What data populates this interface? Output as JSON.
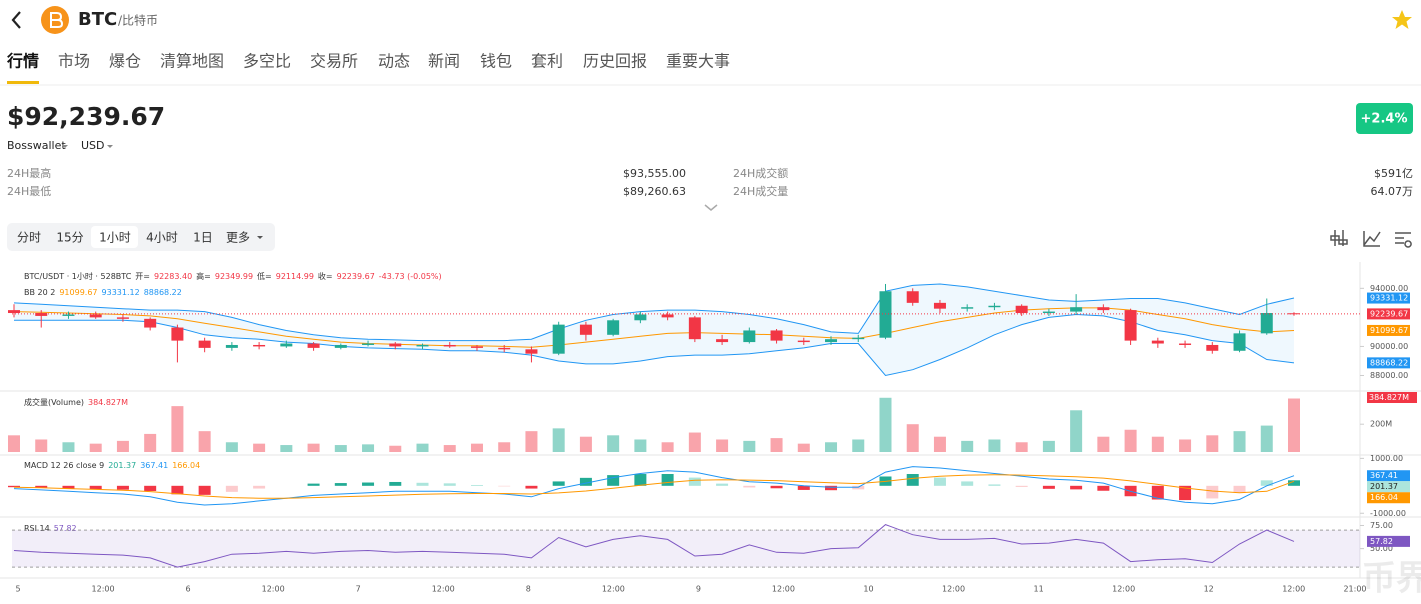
{
  "header": {
    "symbol": "BTC",
    "name": "/比特币"
  },
  "tabs": [
    "行情",
    "市场",
    "爆仓",
    "清算地图",
    "多空比",
    "交易所",
    "动态",
    "新闻",
    "钱包",
    "套利",
    "历史回报",
    "重要大事"
  ],
  "quote": {
    "price": "$92,239.67",
    "change": "+2.4%",
    "source": "Bosswallet",
    "currency": "USD"
  },
  "stats": [
    [
      "24H最高",
      "$93,555.00"
    ],
    [
      "24H最低",
      "$89,260.63"
    ],
    [
      "24H成交额",
      "$591亿"
    ],
    [
      "24H成交量",
      "64.07万"
    ]
  ],
  "timeframes": [
    "分时",
    "15分",
    "1小时",
    "4小时",
    "1日",
    "更多"
  ],
  "chart_data": {
    "type": "candlestick",
    "info": {
      "symbol": "BTC/USDT · 1小时 · 528BTC",
      "open_label": "开=",
      "open": "92283.40",
      "high_label": "高=",
      "high": "92349.99",
      "low_label": "低=",
      "low": "92114.99",
      "close_label": "收=",
      "close": "92239.67",
      "change": "-43.73 (-0.05%)"
    },
    "x_labels": [
      "5",
      "12:00",
      "6",
      "12:00",
      "7",
      "12:00",
      "8",
      "12:00",
      "9",
      "12:00",
      "10",
      "12:00",
      "11",
      "12:00",
      "12",
      "12:00",
      "21:00"
    ],
    "up_color": "#22ab94",
    "down_color": "#f23645",
    "ylim": [
      87000,
      95400
    ],
    "yticks": [
      {
        "value": 94000,
        "label": "94000.00"
      },
      {
        "value": 90000,
        "label": "90000.00"
      },
      {
        "value": 88000,
        "label": "88000.00"
      }
    ],
    "candles": [
      [
        92500,
        92900,
        92000,
        92300
      ],
      [
        92300,
        92500,
        91300,
        92100
      ],
      [
        92100,
        92400,
        91900,
        92200
      ],
      [
        92200,
        92400,
        91900,
        92000
      ],
      [
        92000,
        92200,
        91700,
        91900
      ],
      [
        91900,
        92000,
        91100,
        91300
      ],
      [
        91300,
        91500,
        88900,
        90400
      ],
      [
        90400,
        90600,
        89600,
        89900
      ],
      [
        89900,
        90300,
        89700,
        90100
      ],
      [
        90100,
        90300,
        89800,
        90000
      ],
      [
        90000,
        90400,
        89900,
        90200
      ],
      [
        90200,
        90300,
        89700,
        89900
      ],
      [
        89900,
        90200,
        89800,
        90100
      ],
      [
        90100,
        90400,
        90000,
        90200
      ],
      [
        90200,
        90300,
        89800,
        90000
      ],
      [
        90000,
        90200,
        89800,
        90100
      ],
      [
        90100,
        90300,
        89900,
        90000
      ],
      [
        90000,
        90100,
        89700,
        89900
      ],
      [
        89900,
        90100,
        89600,
        89800
      ],
      [
        89800,
        90000,
        88900,
        89500
      ],
      [
        89500,
        91700,
        89400,
        91500
      ],
      [
        91500,
        91700,
        90400,
        90800
      ],
      [
        90800,
        91900,
        90700,
        91800
      ],
      [
        91800,
        92400,
        91600,
        92200
      ],
      [
        92200,
        92400,
        91800,
        92000
      ],
      [
        92000,
        92100,
        90300,
        90500
      ],
      [
        90500,
        90800,
        90100,
        90300
      ],
      [
        90300,
        91300,
        90200,
        91100
      ],
      [
        91100,
        91200,
        90200,
        90400
      ],
      [
        90400,
        90600,
        90100,
        90300
      ],
      [
        90300,
        90700,
        90100,
        90500
      ],
      [
        90500,
        90800,
        90300,
        90600
      ],
      [
        90600,
        94300,
        90500,
        93800
      ],
      [
        93800,
        94000,
        92800,
        93000
      ],
      [
        93000,
        93200,
        92300,
        92600
      ],
      [
        92600,
        92900,
        92400,
        92700
      ],
      [
        92700,
        93000,
        92500,
        92800
      ],
      [
        92800,
        92900,
        92100,
        92300
      ],
      [
        92300,
        92600,
        92100,
        92400
      ],
      [
        92400,
        93600,
        92200,
        92700
      ],
      [
        92700,
        92900,
        92300,
        92500
      ],
      [
        92500,
        92600,
        90100,
        90400
      ],
      [
        90400,
        90600,
        89900,
        90200
      ],
      [
        90200,
        90400,
        89900,
        90100
      ],
      [
        90100,
        90300,
        89500,
        89700
      ],
      [
        89700,
        91100,
        89600,
        90900
      ],
      [
        90900,
        93300,
        90800,
        92300
      ],
      [
        92283.4,
        92349.99,
        92114.99,
        92239.67
      ]
    ],
    "bb": {
      "label": "BB 20 2",
      "upper_color": "#2196f3",
      "mid_color": "#ff9800",
      "fill": "rgba(33,150,243,0.07)",
      "mid": [
        92400,
        92350,
        92300,
        92250,
        92200,
        92100,
        91900,
        91600,
        91300,
        91000,
        90700,
        90500,
        90300,
        90200,
        90150,
        90100,
        90050,
        90050,
        90000,
        89950,
        90100,
        90300,
        90500,
        90700,
        90900,
        90950,
        90900,
        90850,
        90800,
        90700,
        90600,
        90550,
        90900,
        91300,
        91700,
        92000,
        92300,
        92500,
        92600,
        92650,
        92650,
        92500,
        92200,
        91900,
        91500,
        91200,
        91000,
        91099.67
      ],
      "upper": [
        93000,
        92900,
        92800,
        92700,
        92600,
        92500,
        92500,
        92400,
        92000,
        91500,
        91100,
        90800,
        90600,
        90500,
        90450,
        90400,
        90400,
        90400,
        90400,
        90500,
        91200,
        91800,
        92200,
        92400,
        92500,
        92500,
        92400,
        92200,
        91900,
        91500,
        91000,
        90900,
        93800,
        94200,
        94300,
        94100,
        93800,
        93500,
        93200,
        93100,
        93200,
        93300,
        93300,
        93000,
        92600,
        92200,
        92900,
        93331.12
      ],
      "lower": [
        91800,
        91800,
        91800,
        91800,
        91800,
        91700,
        91300,
        90800,
        90600,
        90500,
        90300,
        90200,
        90000,
        89900,
        89850,
        89800,
        89700,
        89700,
        89600,
        89400,
        89000,
        88800,
        88800,
        89000,
        89300,
        89400,
        89400,
        89500,
        89700,
        89900,
        90200,
        90200,
        88000,
        88400,
        89100,
        89900,
        90800,
        91500,
        92000,
        92200,
        92100,
        91700,
        91100,
        90800,
        90400,
        90200,
        89100,
        88868.22
      ]
    },
    "volume": {
      "label": "成交量(Volume)",
      "value_label": "384.827M",
      "ylim": [
        0,
        410
      ],
      "yticks": [
        {
          "value": 200,
          "label": "200M"
        }
      ],
      "values": [
        120,
        90,
        70,
        60,
        80,
        130,
        330,
        150,
        70,
        60,
        50,
        60,
        50,
        55,
        45,
        60,
        50,
        60,
        70,
        150,
        170,
        110,
        120,
        90,
        70,
        140,
        90,
        80,
        100,
        60,
        70,
        90,
        390,
        200,
        110,
        80,
        90,
        70,
        80,
        300,
        110,
        160,
        110,
        90,
        120,
        150,
        190,
        384.827
      ]
    },
    "macd": {
      "label": "MACD 12 26 close 9",
      "dif_color": "#2196f3",
      "dea_color": "#ff9800",
      "ylim": [
        -1100,
        1050
      ],
      "yticks": [
        {
          "value": 1000,
          "label": "1000.00"
        },
        {
          "value": -1000,
          "label": "-1000.00"
        }
      ],
      "hist": [
        -50,
        -80,
        -100,
        -120,
        -140,
        -190,
        -310,
        -330,
        -220,
        -100,
        0,
        80,
        100,
        120,
        140,
        110,
        90,
        30,
        -20,
        -100,
        160,
        290,
        390,
        430,
        430,
        300,
        80,
        -60,
        -90,
        -150,
        -160,
        -130,
        340,
        430,
        300,
        160,
        50,
        -40,
        -110,
        -130,
        -180,
        -380,
        -500,
        -520,
        -460,
        -250,
        200,
        201.37
      ],
      "dif": [
        -100,
        -150,
        -200,
        -250,
        -300,
        -400,
        -600,
        -700,
        -650,
        -550,
        -450,
        -350,
        -300,
        -250,
        -200,
        -200,
        -200,
        -250,
        -300,
        -400,
        -100,
        100,
        300,
        450,
        550,
        500,
        300,
        150,
        100,
        0,
        -50,
        -50,
        500,
        700,
        650,
        550,
        450,
        350,
        250,
        200,
        100,
        -200,
        -450,
        -600,
        -650,
        -500,
        0,
        367.41
      ],
      "dea": [
        -50,
        -70,
        -100,
        -130,
        -160,
        -210,
        -290,
        -370,
        -430,
        -450,
        -450,
        -430,
        -400,
        -370,
        -340,
        -310,
        -290,
        -280,
        -280,
        -300,
        -260,
        -190,
        -90,
        20,
        120,
        200,
        220,
        210,
        190,
        150,
        110,
        80,
        160,
        270,
        350,
        390,
        400,
        390,
        360,
        330,
        280,
        180,
        50,
        -80,
        -190,
        -250,
        -200,
        166.04
      ]
    },
    "rsi": {
      "label": "RSI 14",
      "color": "#7e57c2",
      "ylim": [
        28,
        82
      ],
      "band": [
        30,
        70
      ],
      "yticks": [
        {
          "value": 75,
          "label": "75.00"
        },
        {
          "value": 50,
          "label": "50.00"
        }
      ],
      "values": [
        48,
        46,
        45,
        44,
        43,
        40,
        30,
        36,
        44,
        45,
        47,
        45,
        47,
        48,
        46,
        47,
        46,
        45,
        44,
        40,
        62,
        52,
        60,
        64,
        60,
        42,
        44,
        54,
        46,
        45,
        50,
        51,
        76,
        65,
        60,
        60,
        61,
        55,
        56,
        60,
        56,
        36,
        38,
        39,
        35,
        55,
        70,
        57.82
      ]
    },
    "watermark": "币界网"
  }
}
